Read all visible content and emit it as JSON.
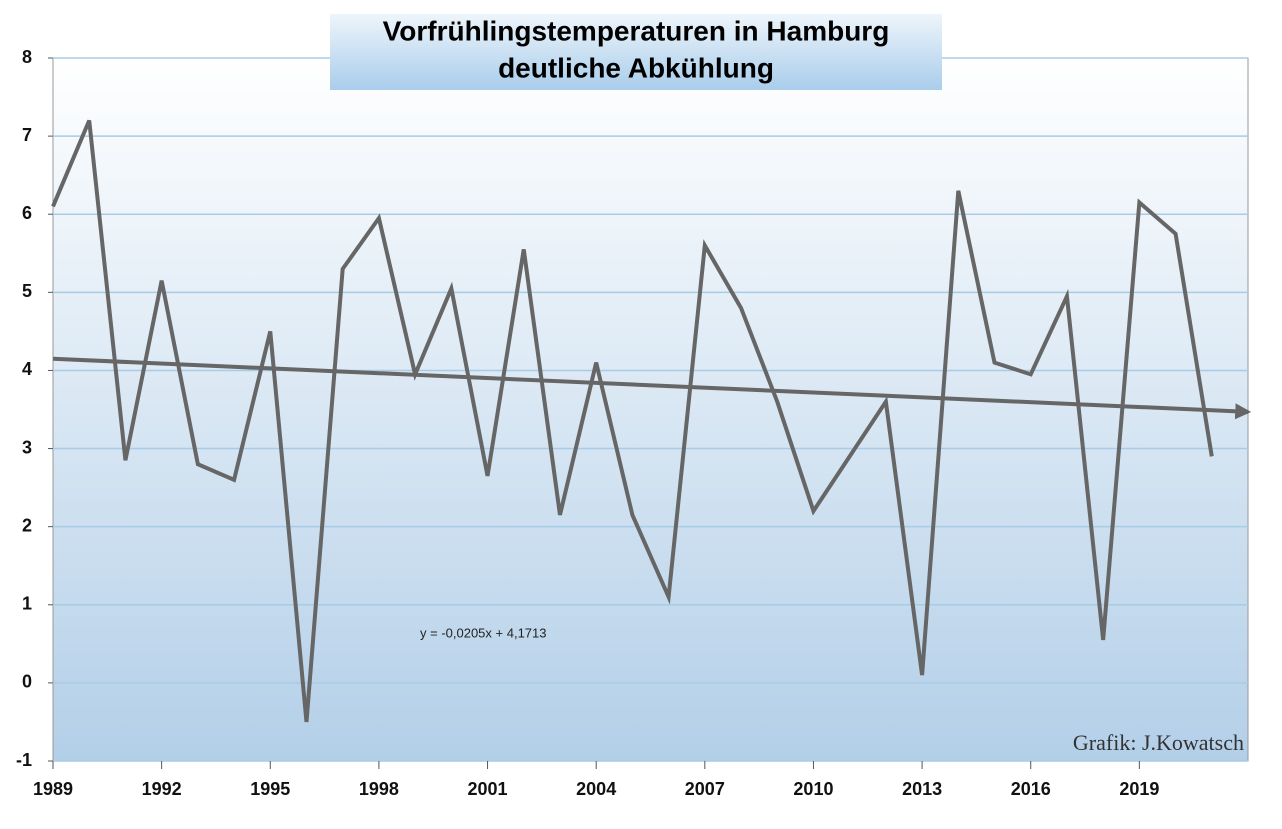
{
  "chart_data": {
    "type": "line",
    "title": "Vorfrühlingstemperaturen in Hamburg",
    "subtitle": "deutliche Abkühlung",
    "annotation": "y = -0,0205x + 4,1713",
    "credit": "Grafik:  J.Kowatsch",
    "x": [
      1989,
      1990,
      1991,
      1992,
      1993,
      1994,
      1995,
      1996,
      1997,
      1998,
      1999,
      2000,
      2001,
      2002,
      2003,
      2004,
      2005,
      2006,
      2007,
      2008,
      2009,
      2010,
      2011,
      2012,
      2013,
      2014,
      2015,
      2016,
      2017,
      2018,
      2019,
      2020,
      2021
    ],
    "series": [
      {
        "color": "#666666",
        "values": [
          6.1,
          7.2,
          2.85,
          5.15,
          2.8,
          2.6,
          4.5,
          -0.5,
          5.3,
          5.95,
          3.95,
          5.05,
          2.65,
          5.55,
          2.15,
          4.1,
          2.15,
          1.1,
          5.6,
          4.8,
          3.6,
          2.2,
          2.9,
          3.6,
          0.1,
          6.3,
          4.1,
          3.95,
          4.95,
          0.55,
          6.15,
          5.75,
          2.9
        ]
      }
    ],
    "trend": {
      "color": "#666666",
      "x": [
        1989,
        2022
      ],
      "values": [
        4.15,
        3.47
      ]
    },
    "xlim": [
      1989,
      2022
    ],
    "xticks": [
      1989,
      1992,
      1995,
      1998,
      2001,
      2004,
      2007,
      2010,
      2013,
      2016,
      2019
    ],
    "ylim": [
      -1,
      8
    ],
    "yticks": [
      -1,
      0,
      1,
      2,
      3,
      4,
      5,
      6,
      7,
      8
    ],
    "grid": true
  }
}
